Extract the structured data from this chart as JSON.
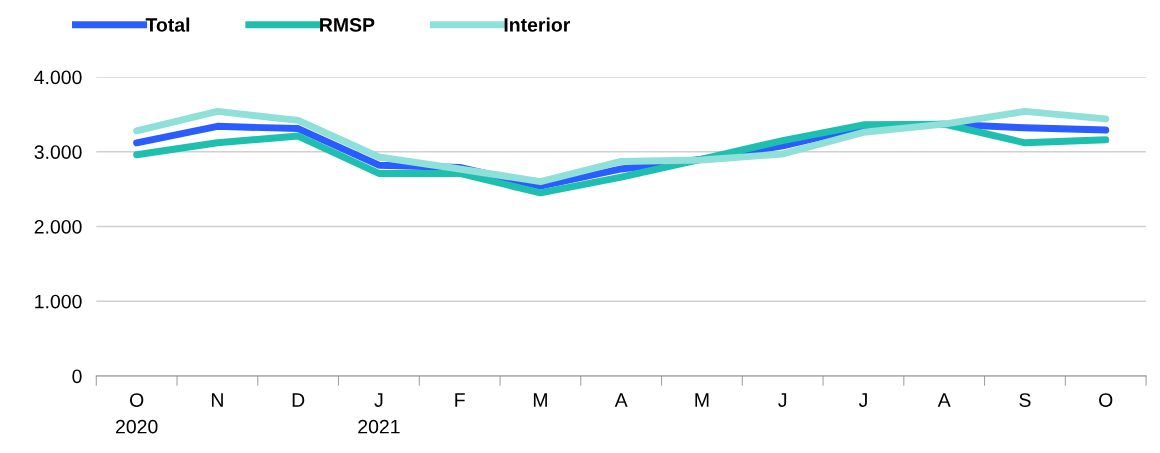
{
  "chart_data": {
    "type": "line",
    "categories": [
      "O\n2020",
      "N",
      "D",
      "J\n2021",
      "F",
      "M",
      "A",
      "M",
      "J",
      "J",
      "A",
      "S",
      "O"
    ],
    "series": [
      {
        "name": "Total",
        "color": "#2b5cff",
        "values": [
          3120,
          3340,
          3310,
          2820,
          2790,
          2540,
          2770,
          2900,
          3080,
          3330,
          3370,
          3320,
          3290
        ]
      },
      {
        "name": "RMSP",
        "color": "#1fbfb0",
        "values": [
          2960,
          3120,
          3210,
          2710,
          2710,
          2450,
          2660,
          2900,
          3150,
          3360,
          3370,
          3120,
          3160
        ]
      },
      {
        "name": "Interior",
        "color": "#8ee0d8",
        "values": [
          3280,
          3540,
          3420,
          2930,
          2770,
          2600,
          2870,
          2890,
          2970,
          3260,
          3370,
          3540,
          3440
        ]
      }
    ],
    "ylim": [
      0,
      4000
    ],
    "yticks": [
      {
        "value": 0,
        "label": "0"
      },
      {
        "value": 1000,
        "label": "1.000"
      },
      {
        "value": 2000,
        "label": "2.000"
      },
      {
        "value": 3000,
        "label": "3.000"
      },
      {
        "value": 4000,
        "label": "4.000"
      }
    ],
    "grid": "y",
    "legend": "top left",
    "marker": "none",
    "line_style": "solid"
  }
}
